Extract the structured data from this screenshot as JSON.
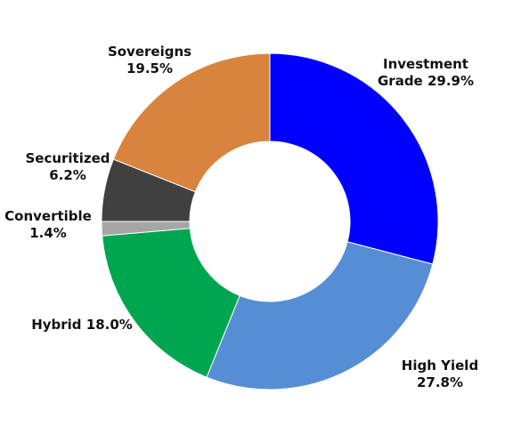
{
  "chart_data": {
    "type": "pie",
    "donut": true,
    "title": "",
    "legend": "none",
    "slices": [
      {
        "name": "Investment Grade",
        "value": 29.9,
        "color": "#0000FF",
        "label_lines": [
          "Investment",
          "Grade 29.9%"
        ]
      },
      {
        "name": "High Yield",
        "value": 27.8,
        "color": "#558ED5",
        "label_lines": [
          "High Yield",
          "27.8%"
        ]
      },
      {
        "name": "Hybrid",
        "value": 18.0,
        "color": "#00A550",
        "label_lines": [
          "Hybrid 18.0%"
        ]
      },
      {
        "name": "Convertible",
        "value": 1.4,
        "color": "#A6A6A6",
        "label_lines": [
          "Convertible",
          "1.4%"
        ]
      },
      {
        "name": "Securitized",
        "value": 6.2,
        "color": "#404040",
        "label_lines": [
          "Securitized",
          "6.2%"
        ]
      },
      {
        "name": "Sovereigns",
        "value": 19.5,
        "color": "#D9843E",
        "label_lines": [
          "Sovereigns",
          "19.5%"
        ]
      }
    ]
  }
}
